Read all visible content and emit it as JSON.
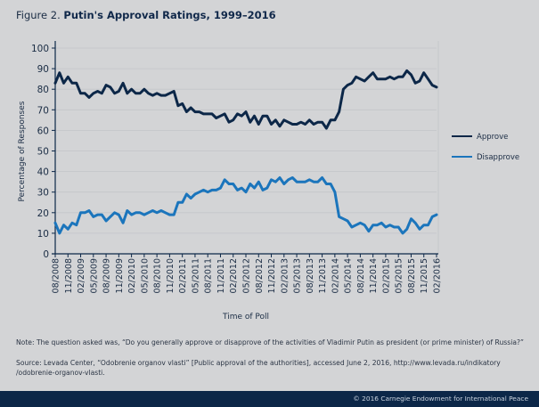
{
  "figure": {
    "label": "Figure 2.",
    "title": "Putin's Approval Ratings, 1999–2016"
  },
  "note": "Note: The question asked was, “Do you generally approve or disapprove of the activities of Vladimir Putin as president (or prime minister) of Russia?”",
  "source_line1": "Source: Levada Center, “Odobrenie organov vlasti” [Public approval of the authorities], accessed June 2, 2016, http://www.levada.ru/indikatory",
  "source_line2": "/odobrenie-organov-vlasti.",
  "copyright": "© 2016 Carnegie Endowment for International Peace",
  "colors": {
    "approve": "#0c2748",
    "disapprove": "#1b75bc",
    "axis": "#0c2748",
    "grid": "#c3c5c9"
  },
  "chart_data": {
    "type": "line",
    "title": "Putin's Approval Ratings, 1999–2016",
    "xlabel": "Time of Poll",
    "ylabel": "Percentage of Responses",
    "ylim": [
      0,
      100
    ],
    "yticks": [
      0,
      10,
      20,
      30,
      40,
      50,
      60,
      70,
      80,
      90,
      100
    ],
    "grid": true,
    "legend_position": "right",
    "x_start": "08/2008",
    "x_end": "02/2016",
    "x_frequency": "monthly",
    "xtick_labels": [
      "08/2008",
      "11/2008",
      "02/2009",
      "05/2009",
      "08/2009",
      "11/2009",
      "02/2010",
      "05/2010",
      "08/2010",
      "11/2010",
      "02/2011",
      "05/2011",
      "08/2011",
      "11/2011",
      "02/2012",
      "05/2012",
      "08/2012",
      "11/2012",
      "02/2013",
      "05/2013",
      "08/2013",
      "11/2013",
      "02/2014",
      "05/2014",
      "08/2014",
      "11/2014",
      "02/2015",
      "05/2015",
      "08/2015",
      "11/2015",
      "02/2016"
    ],
    "series": [
      {
        "name": "Approve",
        "color": "#0c2748",
        "values": [
          83,
          88,
          83,
          86,
          83,
          83,
          78,
          78,
          76,
          78,
          79,
          78,
          82,
          81,
          78,
          79,
          83,
          78,
          80,
          78,
          78,
          80,
          78,
          77,
          78,
          77,
          77,
          78,
          79,
          72,
          73,
          69,
          71,
          69,
          69,
          68,
          68,
          68,
          66,
          67,
          68,
          64,
          65,
          68,
          67,
          69,
          64,
          67,
          63,
          67,
          67,
          63,
          65,
          62,
          65,
          64,
          63,
          63,
          64,
          63,
          65,
          63,
          64,
          64,
          61,
          65,
          65,
          69,
          80,
          82,
          83,
          86,
          85,
          84,
          86,
          88,
          85,
          85,
          85,
          86,
          85,
          86,
          86,
          89,
          87,
          83,
          84,
          88,
          85,
          82,
          81
        ]
      },
      {
        "name": "Disapprove",
        "color": "#1b75bc",
        "values": [
          15,
          10,
          14,
          12,
          15,
          14,
          20,
          20,
          21,
          18,
          19,
          19,
          16,
          18,
          20,
          19,
          15,
          21,
          19,
          20,
          20,
          19,
          20,
          21,
          20,
          21,
          20,
          19,
          19,
          25,
          25,
          29,
          27,
          29,
          30,
          31,
          30,
          31,
          31,
          32,
          36,
          34,
          34,
          31,
          32,
          30,
          34,
          32,
          35,
          31,
          32,
          36,
          35,
          37,
          34,
          36,
          37,
          35,
          35,
          35,
          36,
          35,
          35,
          37,
          34,
          34,
          30,
          18,
          17,
          16,
          13,
          14,
          15,
          14,
          11,
          14,
          14,
          15,
          13,
          14,
          13,
          13,
          10,
          12,
          17,
          15,
          12,
          14,
          14,
          18,
          19
        ]
      }
    ]
  }
}
